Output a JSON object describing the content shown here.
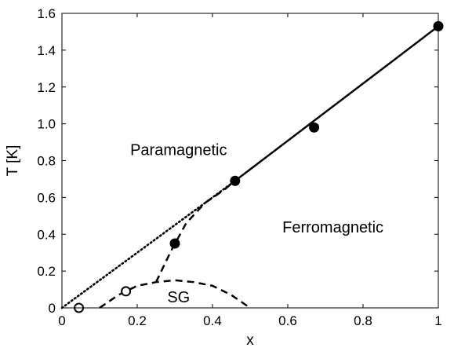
{
  "chart_data": {
    "type": "scatter",
    "title": "",
    "xlabel": "x",
    "ylabel": "T [K]",
    "xlim": [
      0,
      1
    ],
    "ylim": [
      0,
      1.6
    ],
    "grid": false,
    "x_ticks": [
      0,
      0.2,
      0.4,
      0.6,
      0.8,
      1
    ],
    "x_tick_labels": [
      "0",
      "0.2",
      "0.4",
      "0.6",
      "0.8",
      "1"
    ],
    "y_ticks": [
      0,
      0.2,
      0.4,
      0.6,
      0.8,
      1.0,
      1.2,
      1.4,
      1.6
    ],
    "y_tick_labels": [
      "0",
      "0.2",
      "0.4",
      "0.6",
      "0.8",
      "1.0",
      "1.2",
      "1.4",
      "1.6"
    ],
    "series": [
      {
        "style": "filled-circle-markers",
        "x": [
          0.3,
          0.46,
          0.67,
          1.0
        ],
        "y": [
          0.35,
          0.69,
          0.98,
          1.53
        ]
      },
      {
        "style": "open-circle-markers",
        "x": [
          0.045,
          0.17
        ],
        "y": [
          0.0,
          0.09
        ]
      },
      {
        "style": "solid-line",
        "x": [
          0.46,
          1.0
        ],
        "y": [
          0.69,
          1.53
        ]
      },
      {
        "style": "dotted-line",
        "x": [
          0.0,
          0.46
        ],
        "y": [
          0.0,
          0.69
        ]
      },
      {
        "style": "dashed-line",
        "x": [
          0.25,
          0.29,
          0.33,
          0.38,
          0.43,
          0.46
        ],
        "y": [
          0.14,
          0.31,
          0.46,
          0.57,
          0.64,
          0.69
        ]
      },
      {
        "style": "dashed-line",
        "x": [
          0.1,
          0.15,
          0.2,
          0.25,
          0.3,
          0.35,
          0.4,
          0.45,
          0.5
        ],
        "y": [
          0.0,
          0.07,
          0.12,
          0.14,
          0.15,
          0.14,
          0.12,
          0.07,
          0.0
        ]
      }
    ],
    "annotations": [
      {
        "text": "Paramagnetic",
        "x": 0.31,
        "y": 0.86
      },
      {
        "text": "Ferromagnetic",
        "x": 0.72,
        "y": 0.44
      },
      {
        "text": "SG",
        "x": 0.31,
        "y": 0.06
      }
    ]
  }
}
